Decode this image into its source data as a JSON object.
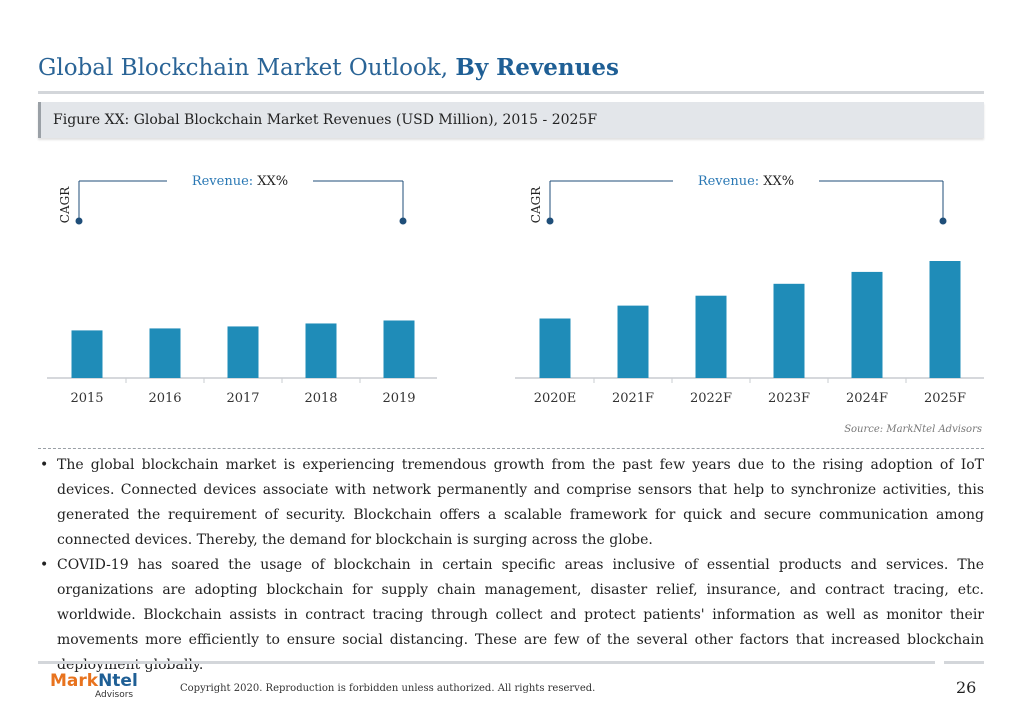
{
  "title": {
    "regular": "Global Blockchain Market Outlook, ",
    "bold": "By Revenues"
  },
  "figure_caption": "Figure XX: Global Blockchain Market Revenues (USD Million), 2015 - 2025F",
  "chart_data": {
    "type": "bar",
    "title": "Figure XX: Global Blockchain Market Revenues (USD Million), 2015 - 2025F",
    "categories": [
      "2015",
      "2016",
      "2017",
      "2018",
      "2019",
      "2020E",
      "2021F",
      "2022F",
      "2023F",
      "2024F",
      "2025F"
    ],
    "values": [
      48,
      50,
      52,
      55,
      58,
      60,
      73,
      83,
      95,
      107,
      118
    ],
    "value_note": "relative bar heights; no value axis shown",
    "colors": {
      "bar": "#1f8cb8",
      "axis": "#c8ccd0",
      "bracket": "#1f4e79"
    },
    "annotations": [
      {
        "vertical_label": "CAGR",
        "label_prefix": "Revenue:",
        "label_value": "XX%"
      },
      {
        "vertical_label": "CAGR",
        "label_prefix": "Revenue:",
        "label_value": "XX%"
      }
    ]
  },
  "source": "Source: MarkNtel Advisors",
  "bullets": [
    "The global blockchain market is experiencing tremendous growth from the past few years due to the rising adoption of IoT devices. Connected devices associate with network permanently and comprise sensors that help to synchronize activities, this generated the requirement of security. Blockchain offers a scalable framework for quick and secure communication among connected devices. Thereby, the demand for blockchain is surging across the globe.",
    "COVID-19 has soared the usage of blockchain in certain specific areas inclusive of essential products and services. The organizations are adopting blockchain for supply chain management, disaster relief, insurance, and contract tracing, etc. worldwide. Blockchain assists in contract tracing through collect and protect patients' information as well as monitor their movements more efficiently to ensure social distancing. These are few of the several other factors that increased blockchain deployment globally."
  ],
  "bullet_symbol": "•",
  "footer": {
    "logo_mark": "Mark",
    "logo_ntel": "Ntel",
    "logo_sub": "Advisors",
    "copyright": "Copyright 2020. Reproduction is forbidden unless authorized. All rights reserved.",
    "page_number": "26"
  }
}
